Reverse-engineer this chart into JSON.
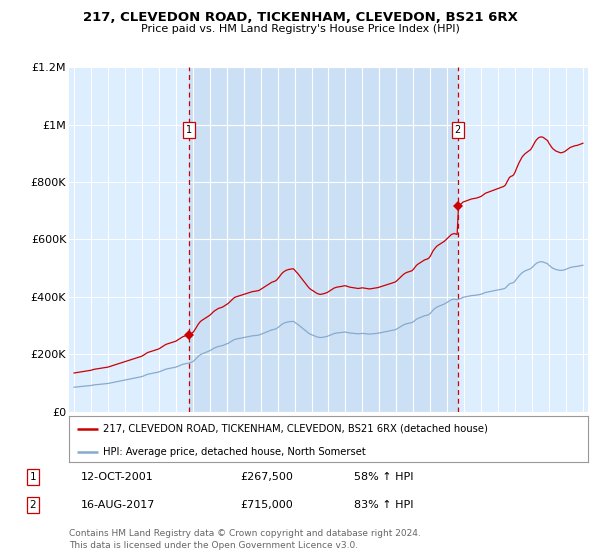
{
  "title1": "217, CLEVEDON ROAD, TICKENHAM, CLEVEDON, BS21 6RX",
  "title2": "Price paid vs. HM Land Registry's House Price Index (HPI)",
  "legend_line1": "217, CLEVEDON ROAD, TICKENHAM, CLEVEDON, BS21 6RX (detached house)",
  "legend_line2": "HPI: Average price, detached house, North Somerset",
  "footnote": "Contains HM Land Registry data © Crown copyright and database right 2024.\nThis data is licensed under the Open Government Licence v3.0.",
  "annotation1": {
    "num": "1",
    "date": "12-OCT-2001",
    "price": "£267,500",
    "pct": "58% ↑ HPI"
  },
  "annotation2": {
    "num": "2",
    "date": "16-AUG-2017",
    "price": "£715,000",
    "pct": "83% ↑ HPI"
  },
  "vline1_x": 2001.79,
  "vline2_x": 2017.62,
  "sale1_price": 267500,
  "sale2_price": 715000,
  "ylim": [
    0,
    1200000
  ],
  "xlim": [
    1994.7,
    2025.3
  ],
  "yticks": [
    0,
    200000,
    400000,
    600000,
    800000,
    1000000,
    1200000
  ],
  "ytick_labels": [
    "£0",
    "£200K",
    "£400K",
    "£600K",
    "£800K",
    "£1M",
    "£1.2M"
  ],
  "xticks": [
    1995,
    1996,
    1997,
    1998,
    1999,
    2000,
    2001,
    2002,
    2003,
    2004,
    2005,
    2006,
    2007,
    2008,
    2009,
    2010,
    2011,
    2012,
    2013,
    2014,
    2015,
    2016,
    2017,
    2018,
    2019,
    2020,
    2021,
    2022,
    2023,
    2024,
    2025
  ],
  "red_color": "#cc0000",
  "blue_color": "#88aacc",
  "bg_color": "#ddeeff",
  "highlight_bg": "#cce0f5",
  "grid_color": "#ffffff"
}
